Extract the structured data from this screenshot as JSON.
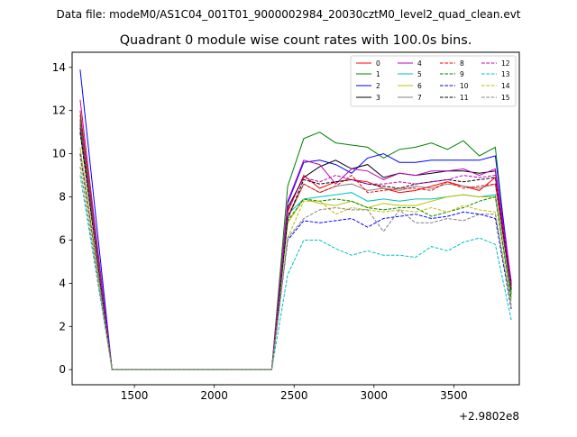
{
  "chart_data": {
    "type": "line",
    "suptitle": "Data file: modeM0/AS1C04_001T01_9000002984_20030cztM0_level2_quad_clean.evt",
    "title": "Quadrant 0 module wise count rates with 100.0s bins.",
    "xlabel": "",
    "ylabel": "",
    "x_offset_label": "+2.9802e8",
    "xlim": [
      1110,
      3910
    ],
    "ylim": [
      -0.7,
      14.7
    ],
    "xticks": [
      1500,
      2000,
      2500,
      3000,
      3500
    ],
    "yticks": [
      0,
      2,
      4,
      6,
      8,
      10,
      12,
      14
    ],
    "grid": false,
    "legend_position": "top-right",
    "x": [
      1160,
      1360,
      2360,
      2460,
      2560,
      2660,
      2760,
      2860,
      2960,
      3060,
      3160,
      3260,
      3360,
      3460,
      3560,
      3660,
      3760,
      3860
    ],
    "series": [
      {
        "name": "0",
        "color": "#ff0000",
        "dash": "solid",
        "values": [
          12.0,
          0.0,
          0.0,
          7.3,
          9.0,
          8.4,
          8.7,
          8.8,
          8.7,
          8.4,
          8.2,
          8.3,
          8.5,
          8.7,
          8.5,
          8.3,
          8.9,
          3.8
        ]
      },
      {
        "name": "1",
        "color": "#008000",
        "dash": "solid",
        "values": [
          11.8,
          0.0,
          0.0,
          8.5,
          10.7,
          11.0,
          10.5,
          10.4,
          10.3,
          9.8,
          10.2,
          10.3,
          10.5,
          10.2,
          10.6,
          9.9,
          10.3,
          3.5
        ]
      },
      {
        "name": "2",
        "color": "#0000ff",
        "dash": "solid",
        "values": [
          13.9,
          0.0,
          0.0,
          7.7,
          9.6,
          9.7,
          9.5,
          9.1,
          9.8,
          10.0,
          9.6,
          9.6,
          9.7,
          9.7,
          9.7,
          9.7,
          9.9,
          4.0
        ]
      },
      {
        "name": "3",
        "color": "#000000",
        "dash": "solid",
        "values": [
          11.2,
          0.0,
          0.0,
          7.5,
          8.9,
          9.4,
          9.7,
          9.3,
          9.5,
          8.9,
          9.1,
          9.0,
          9.1,
          9.2,
          9.2,
          9.1,
          9.2,
          3.9
        ]
      },
      {
        "name": "4",
        "color": "#bf00bf",
        "dash": "solid",
        "values": [
          12.5,
          0.0,
          0.0,
          7.8,
          9.7,
          9.5,
          8.6,
          9.3,
          9.2,
          8.8,
          9.1,
          9.0,
          9.2,
          9.2,
          9.3,
          9.0,
          9.3,
          4.1
        ]
      },
      {
        "name": "5",
        "color": "#00bfbf",
        "dash": "solid",
        "values": [
          11.5,
          0.0,
          0.0,
          7.2,
          7.9,
          8.0,
          8.1,
          8.2,
          7.8,
          7.9,
          7.8,
          7.9,
          7.9,
          8.0,
          8.1,
          8.0,
          8.1,
          3.3
        ]
      },
      {
        "name": "6",
        "color": "#bfbf00",
        "dash": "solid",
        "values": [
          10.3,
          0.0,
          0.0,
          6.8,
          7.9,
          7.7,
          7.6,
          7.8,
          7.5,
          7.7,
          7.6,
          7.6,
          7.8,
          8.0,
          8.1,
          8.0,
          8.0,
          3.2
        ]
      },
      {
        "name": "7",
        "color": "#808080",
        "dash": "solid",
        "values": [
          11.0,
          0.0,
          0.0,
          7.0,
          8.6,
          8.2,
          8.5,
          8.6,
          8.3,
          8.4,
          8.3,
          8.5,
          8.4,
          8.6,
          8.5,
          8.4,
          8.6,
          3.6
        ]
      },
      {
        "name": "8",
        "color": "#ff0000",
        "dash": "dashed",
        "values": [
          11.6,
          0.0,
          0.0,
          7.1,
          8.6,
          8.2,
          8.5,
          9.0,
          8.2,
          8.3,
          8.4,
          8.4,
          8.3,
          8.7,
          8.4,
          8.5,
          8.6,
          3.7
        ]
      },
      {
        "name": "9",
        "color": "#008000",
        "dash": "dashed",
        "values": [
          11.3,
          0.0,
          0.0,
          6.9,
          7.9,
          7.8,
          7.9,
          7.8,
          7.5,
          7.4,
          7.5,
          7.5,
          7.1,
          7.3,
          7.5,
          7.8,
          8.0,
          3.3
        ]
      },
      {
        "name": "10",
        "color": "#0000ff",
        "dash": "dashed",
        "values": [
          10.0,
          0.0,
          0.0,
          6.0,
          6.9,
          6.8,
          6.9,
          7.0,
          6.6,
          7.0,
          7.1,
          7.2,
          7.0,
          7.1,
          7.3,
          7.2,
          7.0,
          2.8
        ]
      },
      {
        "name": "11",
        "color": "#000000",
        "dash": "dashed",
        "values": [
          11.0,
          0.0,
          0.0,
          7.0,
          8.8,
          8.6,
          8.7,
          8.8,
          8.6,
          8.5,
          8.4,
          8.6,
          8.7,
          8.8,
          8.7,
          8.8,
          8.9,
          3.7
        ]
      },
      {
        "name": "12",
        "color": "#bf00bf",
        "dash": "dashed",
        "values": [
          11.4,
          0.0,
          0.0,
          7.4,
          8.9,
          8.7,
          9.0,
          8.8,
          8.6,
          8.6,
          8.7,
          8.6,
          8.7,
          8.8,
          9.0,
          8.9,
          9.0,
          3.9
        ]
      },
      {
        "name": "13",
        "color": "#00bfbf",
        "dash": "dashed",
        "values": [
          9.0,
          0.0,
          0.0,
          4.4,
          6.0,
          6.0,
          5.6,
          5.3,
          5.5,
          5.3,
          5.3,
          5.2,
          5.7,
          5.5,
          5.9,
          6.1,
          5.8,
          2.3
        ]
      },
      {
        "name": "14",
        "color": "#bfbf00",
        "dash": "dashed",
        "values": [
          9.8,
          0.0,
          0.0,
          6.1,
          7.8,
          7.8,
          7.2,
          7.5,
          7.4,
          7.3,
          7.4,
          7.3,
          7.5,
          7.3,
          7.6,
          7.4,
          7.3,
          2.9
        ]
      },
      {
        "name": "15",
        "color": "#808080",
        "dash": "dashed",
        "values": [
          9.4,
          0.0,
          0.0,
          6.1,
          7.0,
          7.4,
          7.5,
          7.4,
          7.4,
          6.4,
          7.4,
          6.8,
          6.8,
          7.0,
          6.9,
          7.2,
          7.2,
          3.0
        ]
      }
    ]
  }
}
